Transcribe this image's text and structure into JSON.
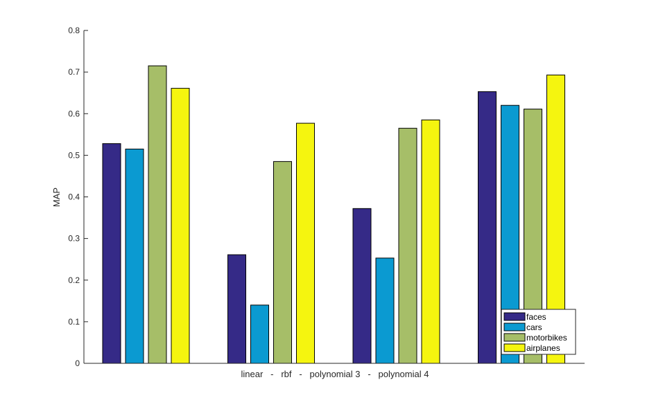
{
  "chart_data": {
    "type": "bar",
    "categories": [
      "linear",
      "rbf",
      "polynomial 3",
      "polynomial 4"
    ],
    "series": [
      {
        "name": "faces",
        "color": "#352a87",
        "values": [
          0.528,
          0.261,
          0.372,
          0.653
        ]
      },
      {
        "name": "cars",
        "color": "#0b9ad1",
        "values": [
          0.515,
          0.14,
          0.253,
          0.62
        ]
      },
      {
        "name": "motorbikes",
        "color": "#a6be68",
        "values": [
          0.715,
          0.485,
          0.565,
          0.611
        ]
      },
      {
        "name": "airplanes",
        "color": "#f5f50f",
        "values": [
          0.661,
          0.577,
          0.585,
          0.693
        ]
      }
    ],
    "title": "",
    "xlabel": "linear   -   rbf   -   polynomial 3   -   polynomial 4",
    "ylabel": "MAP",
    "ylim": [
      0,
      0.8
    ],
    "yticks": [
      "0",
      "0.1",
      "0.2",
      "0.3",
      "0.4",
      "0.5",
      "0.6",
      "0.7",
      "0.8"
    ],
    "grid": false,
    "legend": {
      "position": "bottom-right",
      "entries": [
        "faces",
        "cars",
        "motorbikes",
        "airplanes"
      ]
    }
  }
}
